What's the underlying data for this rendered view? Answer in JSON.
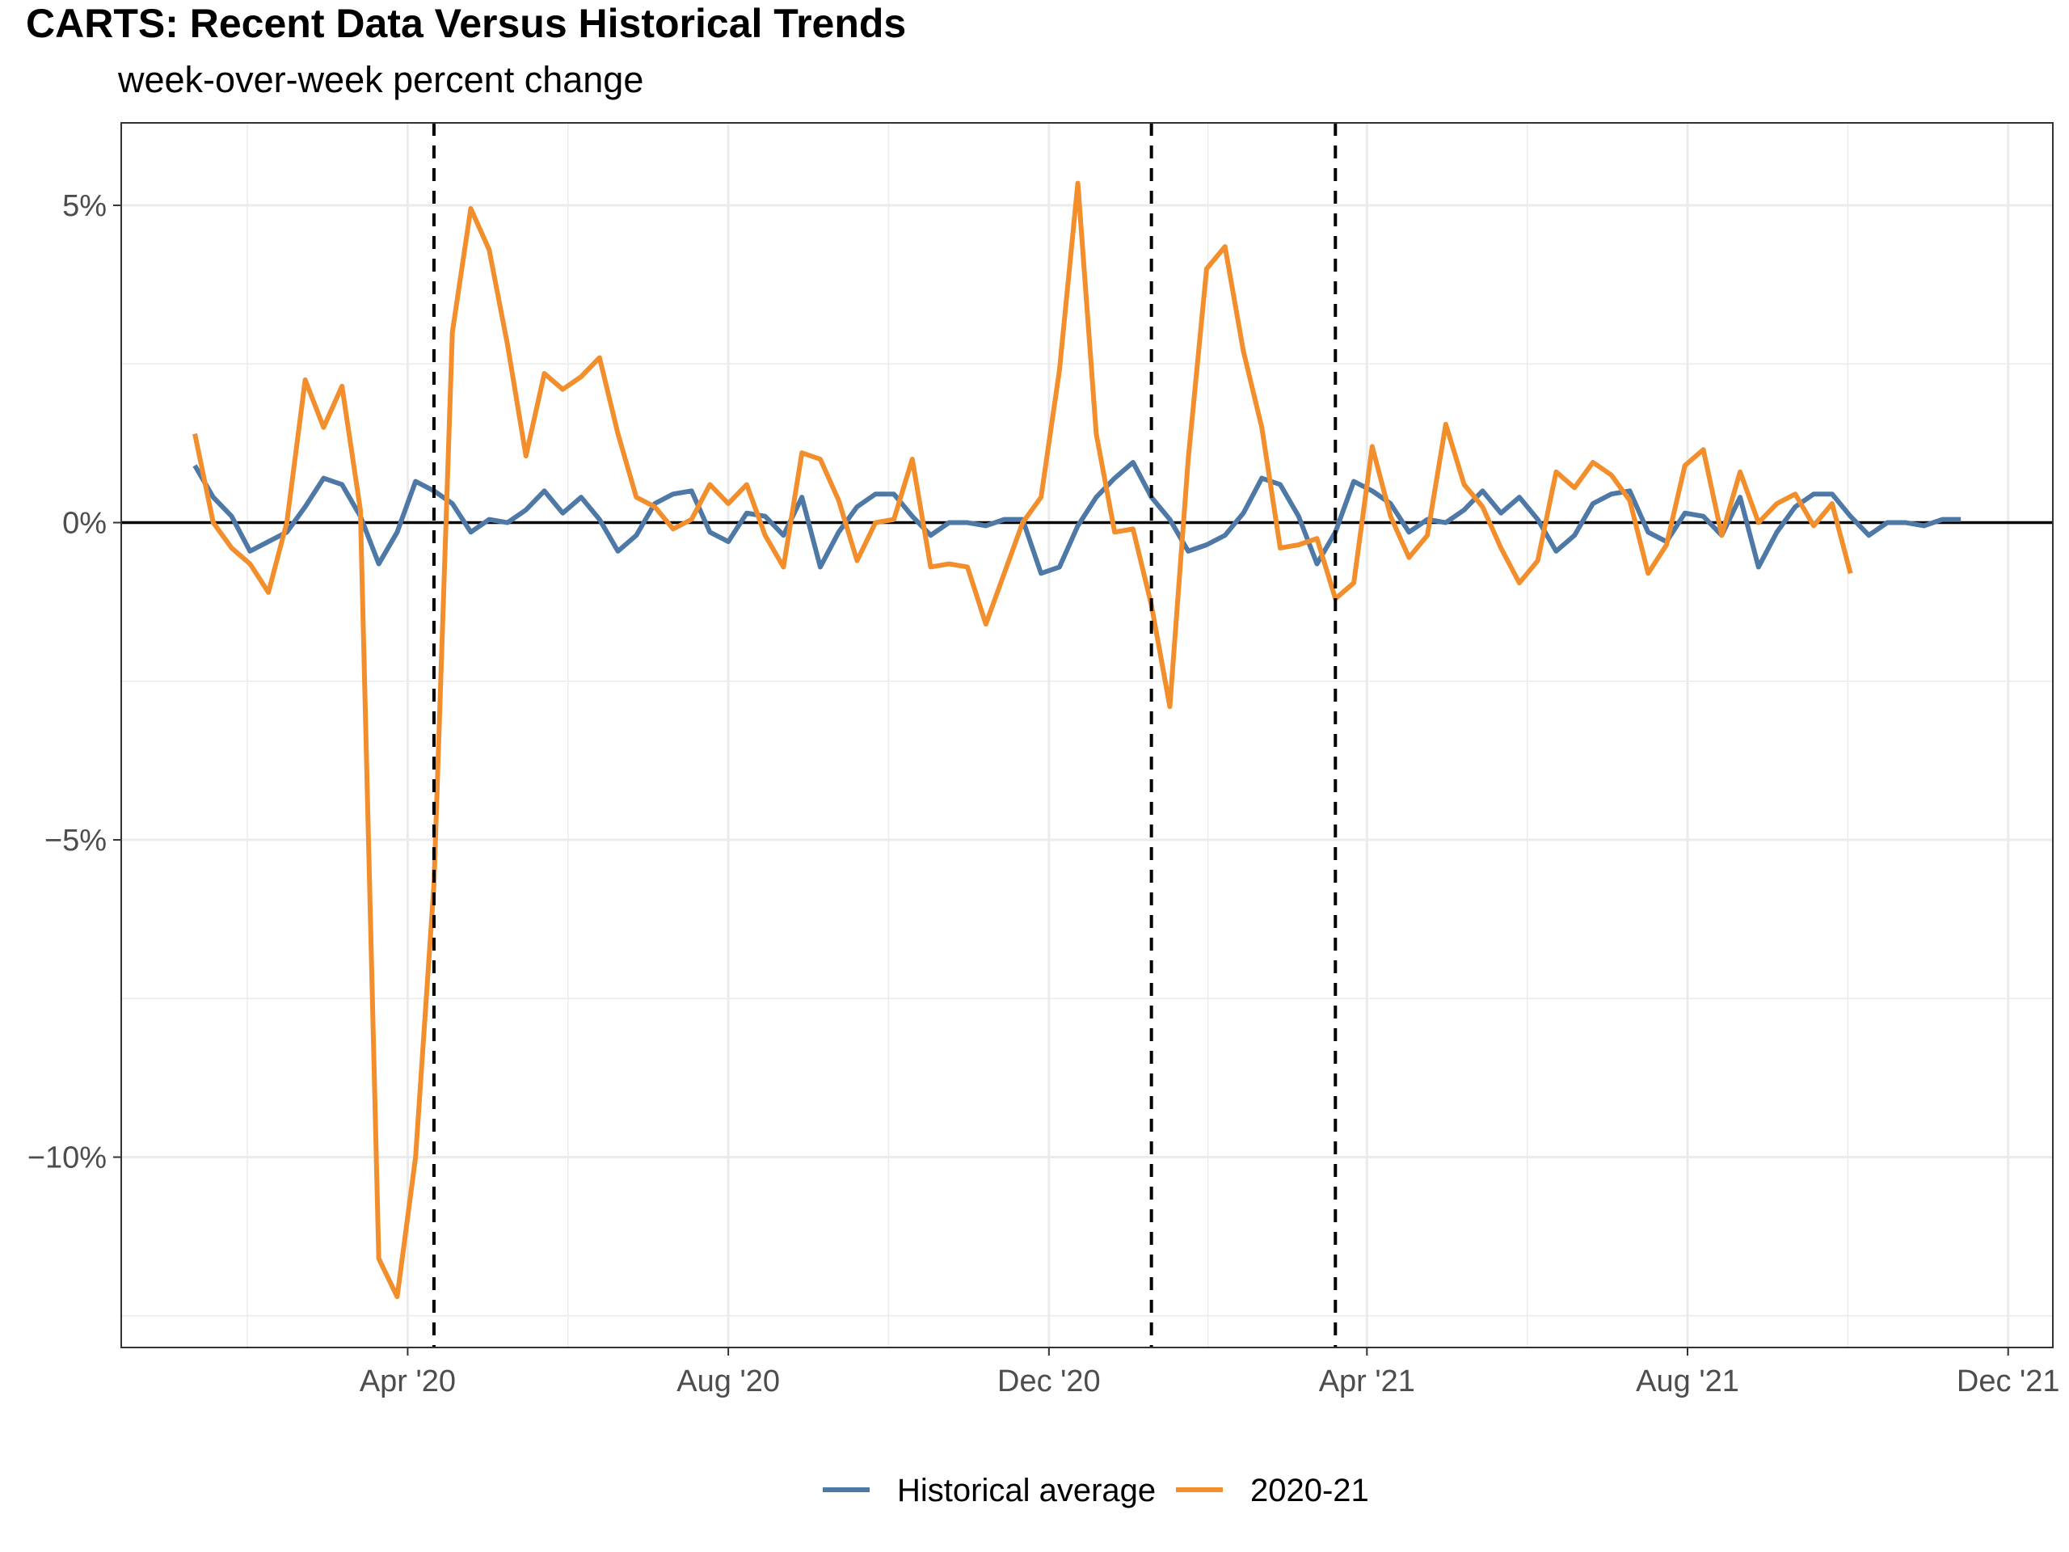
{
  "chart_data": {
    "type": "line",
    "title": "CARTS: Recent Data Versus Historical Trends",
    "subtitle": "week-over-week percent change",
    "xlabel": "",
    "ylabel": "",
    "x_start": "2020-01-11",
    "x_step_days": 7,
    "xlim": [
      "2019-12-14",
      "2021-12-18"
    ],
    "ylim": [
      -13,
      6.3
    ],
    "y_ticks": [
      {
        "value": 5,
        "label": "5%"
      },
      {
        "value": 0,
        "label": "0%"
      },
      {
        "value": -5,
        "label": "−5%"
      },
      {
        "value": -10,
        "label": "−10%"
      }
    ],
    "y_minor_gridlines": [
      2.5,
      -2.5,
      -7.5,
      -12.5
    ],
    "x_ticks": [
      {
        "date": "2020-04-01",
        "label": "Apr '20"
      },
      {
        "date": "2020-08-01",
        "label": "Aug '20"
      },
      {
        "date": "2020-12-01",
        "label": "Dec '20"
      },
      {
        "date": "2021-04-01",
        "label": "Apr '21"
      },
      {
        "date": "2021-08-01",
        "label": "Aug '21"
      },
      {
        "date": "2021-12-01",
        "label": "Dec '21"
      }
    ],
    "vertical_lines": [
      "2020-04-11",
      "2021-01-09",
      "2021-03-20"
    ],
    "zero_line": 0,
    "grid": true,
    "legend_position": "bottom",
    "series": [
      {
        "name": "Historical average",
        "color": "#4e79a7",
        "values": [
          0.9,
          0.4,
          0.1,
          -0.45,
          -0.3,
          -0.15,
          0.25,
          0.7,
          0.6,
          0.1,
          -0.65,
          -0.15,
          0.65,
          0.5,
          0.3,
          -0.15,
          0.05,
          0.0,
          0.2,
          0.5,
          0.15,
          0.4,
          0.05,
          -0.45,
          -0.2,
          0.3,
          0.45,
          0.5,
          -0.15,
          -0.3,
          0.15,
          0.1,
          -0.2,
          0.4,
          -0.7,
          -0.15,
          0.25,
          0.45,
          0.45,
          0.1,
          -0.2,
          0.0,
          0.0,
          -0.05,
          0.05,
          0.05,
          -0.8,
          -0.7,
          -0.05,
          0.4,
          0.7,
          0.95,
          0.4,
          0.05,
          -0.45,
          -0.35,
          -0.2,
          0.15,
          0.7,
          0.6,
          0.1,
          -0.65,
          -0.15,
          0.65,
          0.5,
          0.3,
          -0.15,
          0.05,
          0.0,
          0.2,
          0.5,
          0.15,
          0.4,
          0.05,
          -0.45,
          -0.2,
          0.3,
          0.45,
          0.5,
          -0.15,
          -0.3,
          0.15,
          0.1,
          -0.2,
          0.4,
          -0.7,
          -0.15,
          0.25,
          0.45,
          0.45,
          0.1,
          -0.2,
          0.0,
          0.0,
          -0.05,
          0.05,
          0.05
        ]
      },
      {
        "name": "2020-21",
        "color": "#f28e2b",
        "values": [
          1.4,
          0.0,
          -0.4,
          -0.65,
          -1.1,
          0.0,
          2.25,
          1.5,
          2.15,
          0.2,
          -11.6,
          -12.2,
          -10.0,
          -5.7,
          3.0,
          4.95,
          4.3,
          2.8,
          1.05,
          2.35,
          2.1,
          2.3,
          2.6,
          1.4,
          0.4,
          0.25,
          -0.1,
          0.05,
          0.6,
          0.3,
          0.6,
          -0.2,
          -0.7,
          1.1,
          1.0,
          0.35,
          -0.6,
          0.0,
          0.05,
          1.0,
          -0.7,
          -0.65,
          -0.7,
          -1.6,
          -0.8,
          0.0,
          0.4,
          2.4,
          5.35,
          1.4,
          -0.15,
          -0.1,
          -1.3,
          -2.9,
          1.0,
          4.0,
          4.35,
          2.7,
          1.5,
          -0.4,
          -0.35,
          -0.25,
          -1.2,
          -0.95,
          1.2,
          0.1,
          -0.55,
          -0.2,
          1.55,
          0.6,
          0.25,
          -0.4,
          -0.95,
          -0.6,
          0.8,
          0.55,
          0.95,
          0.75,
          0.35,
          -0.8,
          -0.35,
          0.9,
          1.15,
          -0.2,
          0.8,
          0.0,
          0.3,
          0.45,
          -0.05,
          0.3,
          -0.8
        ]
      }
    ]
  }
}
